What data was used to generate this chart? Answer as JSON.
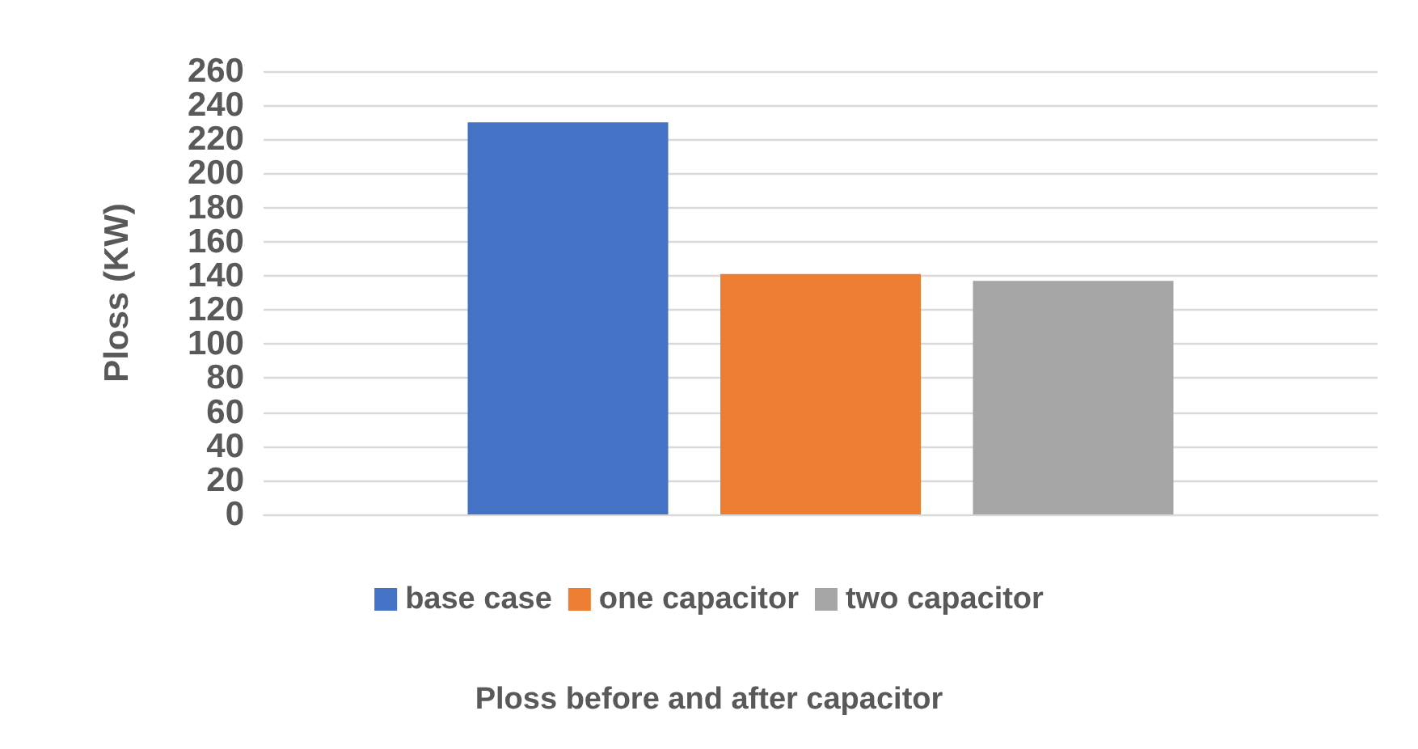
{
  "chart_data": {
    "type": "bar",
    "annotations": [
      "Ploss before and after capacitor"
    ],
    "ylabel": "Ploss (KW)",
    "categories": [
      null
    ],
    "series": [
      {
        "name": "base case",
        "color": "#4472c4",
        "values": [
          230
        ]
      },
      {
        "name": "one capacitor",
        "color": "#ed7d31",
        "values": [
          141
        ]
      },
      {
        "name": "two capacitor",
        "color": "#a5a5a5",
        "values": [
          137
        ]
      }
    ],
    "ylim": [
      0,
      260
    ],
    "yticks": [
      0,
      20,
      40,
      60,
      80,
      100,
      120,
      140,
      160,
      180,
      200,
      220,
      240,
      260
    ],
    "grid": "y",
    "legend": "bottom"
  }
}
